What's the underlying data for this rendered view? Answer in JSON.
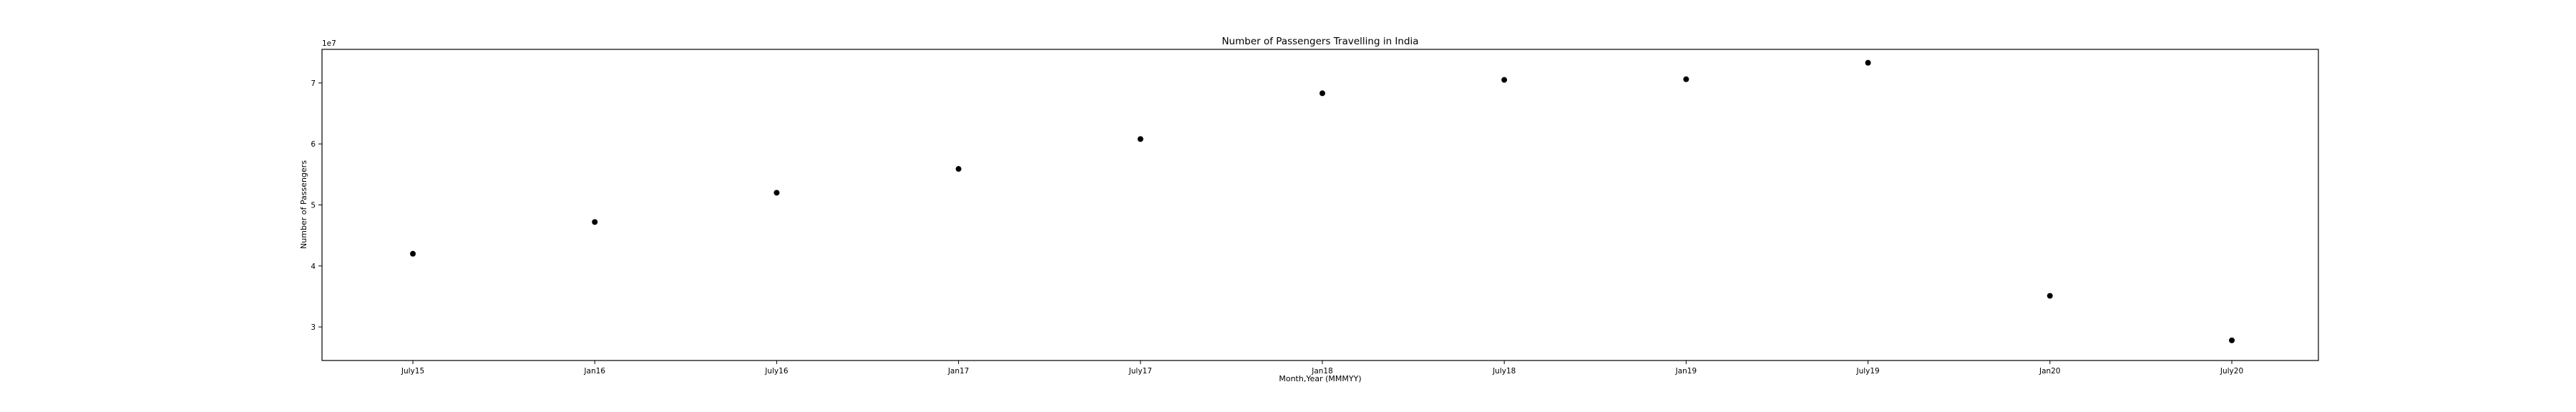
{
  "chart_data": {
    "type": "scatter",
    "title": "Number of Passengers Travelling in India",
    "xlabel": "Month,Year (MMMYY)",
    "ylabel": "Number of Passengers",
    "y_offset_label": "1e7",
    "categories": [
      "July15",
      "Jan16",
      "July16",
      "Jan17",
      "July17",
      "Jan18",
      "July18",
      "Jan19",
      "July19",
      "Jan20",
      "July20"
    ],
    "values": [
      42000000,
      47200000,
      52000000,
      55900000,
      60800000,
      68300000,
      70500000,
      70600000,
      73300000,
      35100000,
      27800000
    ],
    "yticks": [
      3,
      4,
      5,
      6,
      7
    ],
    "ylim": [
      2.45,
      7.55
    ],
    "grid": false,
    "marker_color": "#000000"
  }
}
